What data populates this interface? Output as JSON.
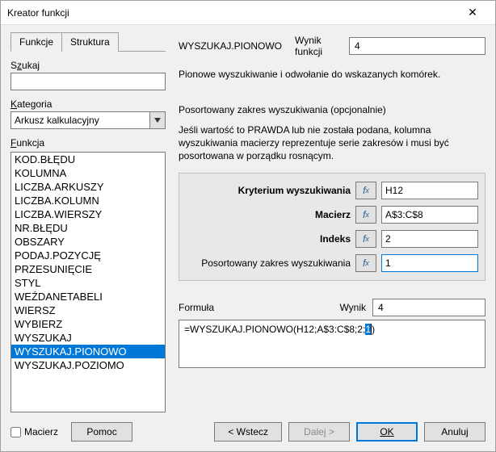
{
  "window": {
    "title": "Kreator funkcji"
  },
  "tabs": {
    "functions": "Funkcje",
    "structure": "Struktura"
  },
  "left": {
    "search_label_pre": "S",
    "search_label_ul": "z",
    "search_label_post": "ukaj",
    "category_label_ul": "K",
    "category_label_post": "ategoria",
    "category_value": "Arkusz kalkulacyjny",
    "function_label_ul": "F",
    "function_label_post": "unkcja",
    "items": [
      "KOD.BŁĘDU",
      "KOLUMNA",
      "LICZBA.ARKUSZY",
      "LICZBA.KOLUMN",
      "LICZBA.WIERSZY",
      "NR.BŁĘDU",
      "OBSZARY",
      "PODAJ.POZYCJĘ",
      "PRZESUNIĘCIE",
      "STYL",
      "WEŹDANETABELI",
      "WIERSZ",
      "WYBIERZ",
      "WYSZUKAJ",
      "WYSZUKAJ.PIONOWO",
      "WYSZUKAJ.POZIOMO"
    ],
    "selected_index": 14
  },
  "right": {
    "fn_name": "WYSZUKAJ.PIONOWO",
    "result_label_pre": "Wynik ",
    "result_label_ul": "f",
    "result_label_post": "unkcji",
    "result_value": "4",
    "description": "Pionowe wyszukiwanie i odwołanie do wskazanych komórek.",
    "subheading": "Posortowany zakres wyszukiwania (opcjonalnie)",
    "subdesc": "Jeśli wartość to PRAWDA lub nie została podana, kolumna wyszukiwania macierzy reprezentuje serie zakresów i musi być posortowana w porządku rosnącym.",
    "params": [
      {
        "label": "Kryterium wyszukiwania",
        "bold": true,
        "value": "H12"
      },
      {
        "label": "Macierz",
        "bold": true,
        "value": "A$3:C$8"
      },
      {
        "label": "Indeks",
        "bold": true,
        "value": "2"
      },
      {
        "label": "Posortowany zakres wyszukiwania",
        "bold": false,
        "value": "1"
      }
    ],
    "formula_label_pre": "For",
    "formula_label_ul": "m",
    "formula_label_post": "uła",
    "wynik_label": "Wynik",
    "wynik_value": "4",
    "formula_pre": "=WYSZUKAJ.PIONOWO(H12;A$3:C$8;2;",
    "formula_sel": "1",
    "formula_post": ")"
  },
  "footer": {
    "macierz_ul": "M",
    "macierz_post": "acierz",
    "help_ul": "P",
    "help_post": "omoc",
    "back_pre": "< ",
    "back_ul": "W",
    "back_post": "stecz",
    "next_ul": "D",
    "next_post": "ale",
    "next_ul2": "j",
    "next_post2": " >",
    "ok": "OK",
    "cancel_pre": "An",
    "cancel_ul": "u",
    "cancel_post": "luj"
  },
  "colors": {
    "selection": "#0078d7",
    "panel_bg": "#f0f0f0",
    "border": "#7a7a7a",
    "param_bg": "#e8e8e8"
  }
}
